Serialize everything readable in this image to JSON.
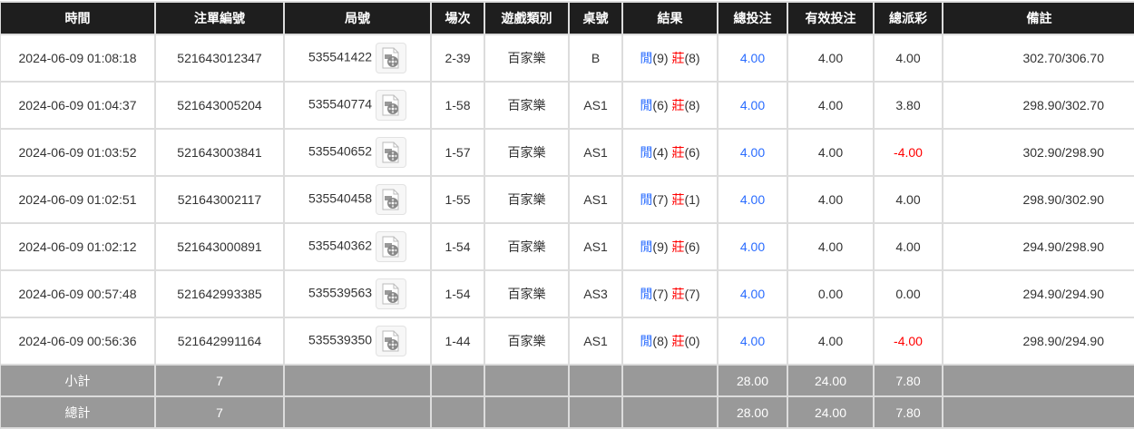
{
  "headers": [
    "時間",
    "注單編號",
    "局號",
    "場次",
    "遊戲類別",
    "桌號",
    "結果",
    "總投注",
    "有效投注",
    "總派彩",
    "備註"
  ],
  "result_labels": {
    "player": "閒",
    "banker": "莊"
  },
  "colors": {
    "header_bg": "#1e1e1e",
    "summary_bg": "#999999",
    "blue": "#2a6cff",
    "red": "#ff0000"
  },
  "rows": [
    {
      "time": "2024-06-09 01:08:18",
      "bet_id": "521643012347",
      "round": "535541422",
      "shoe": "2-39",
      "game": "百家樂",
      "table": "B",
      "player": "(9)",
      "banker": "(8)",
      "total_bet": "4.00",
      "valid_bet": "4.00",
      "payout": "4.00",
      "payout_negative": false,
      "remark": "302.70/306.70"
    },
    {
      "time": "2024-06-09 01:04:37",
      "bet_id": "521643005204",
      "round": "535540774",
      "shoe": "1-58",
      "game": "百家樂",
      "table": "AS1",
      "player": "(6)",
      "banker": "(8)",
      "total_bet": "4.00",
      "valid_bet": "4.00",
      "payout": "3.80",
      "payout_negative": false,
      "remark": "298.90/302.70"
    },
    {
      "time": "2024-06-09 01:03:52",
      "bet_id": "521643003841",
      "round": "535540652",
      "shoe": "1-57",
      "game": "百家樂",
      "table": "AS1",
      "player": "(4)",
      "banker": "(6)",
      "total_bet": "4.00",
      "valid_bet": "4.00",
      "payout": "-4.00",
      "payout_negative": true,
      "remark": "302.90/298.90"
    },
    {
      "time": "2024-06-09 01:02:51",
      "bet_id": "521643002117",
      "round": "535540458",
      "shoe": "1-55",
      "game": "百家樂",
      "table": "AS1",
      "player": "(7)",
      "banker": "(1)",
      "total_bet": "4.00",
      "valid_bet": "4.00",
      "payout": "4.00",
      "payout_negative": false,
      "remark": "298.90/302.90"
    },
    {
      "time": "2024-06-09 01:02:12",
      "bet_id": "521643000891",
      "round": "535540362",
      "shoe": "1-54",
      "game": "百家樂",
      "table": "AS1",
      "player": "(9)",
      "banker": "(6)",
      "total_bet": "4.00",
      "valid_bet": "4.00",
      "payout": "4.00",
      "payout_negative": false,
      "remark": "294.90/298.90"
    },
    {
      "time": "2024-06-09 00:57:48",
      "bet_id": "521642993385",
      "round": "535539563",
      "shoe": "1-54",
      "game": "百家樂",
      "table": "AS3",
      "player": "(7)",
      "banker": "(7)",
      "total_bet": "4.00",
      "valid_bet": "0.00",
      "payout": "0.00",
      "payout_negative": false,
      "remark": "294.90/294.90"
    },
    {
      "time": "2024-06-09 00:56:36",
      "bet_id": "521642991164",
      "round": "535539350",
      "shoe": "1-44",
      "game": "百家樂",
      "table": "AS1",
      "player": "(8)",
      "banker": "(0)",
      "total_bet": "4.00",
      "valid_bet": "4.00",
      "payout": "-4.00",
      "payout_negative": true,
      "remark": "298.90/294.90"
    }
  ],
  "subtotal": {
    "label": "小計",
    "count": "7",
    "total_bet": "28.00",
    "valid_bet": "24.00",
    "payout": "7.80"
  },
  "total": {
    "label": "總計",
    "count": "7",
    "total_bet": "28.00",
    "valid_bet": "24.00",
    "payout": "7.80"
  }
}
